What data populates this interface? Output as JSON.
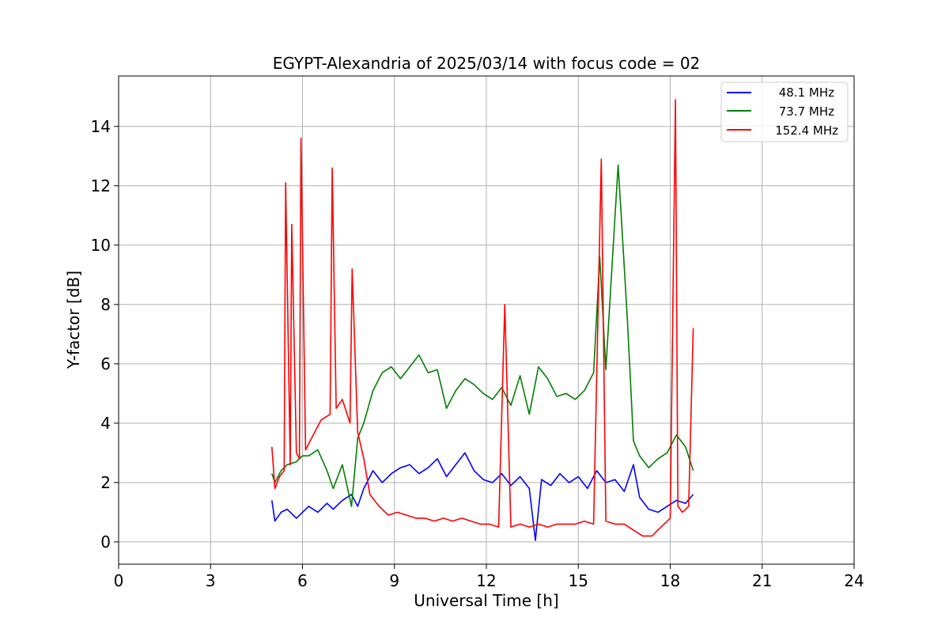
{
  "chart_data": {
    "type": "line",
    "title": "EGYPT-Alexandria of 2025/03/14 with focus code = 02",
    "xlabel": "Universal Time [h]",
    "ylabel": "Y-factor [dB]",
    "xlim": [
      0,
      24
    ],
    "ylim": [
      -0.75,
      15.7
    ],
    "xticks": [
      0,
      3,
      6,
      9,
      12,
      15,
      18,
      21,
      24
    ],
    "yticks": [
      0,
      2,
      4,
      6,
      8,
      10,
      12,
      14
    ],
    "grid": true,
    "legend_position": "top-right",
    "series": [
      {
        "name": "48.1 MHz",
        "color": "#0000ff",
        "x": [
          5.0,
          5.1,
          5.3,
          5.5,
          5.8,
          6.0,
          6.2,
          6.5,
          6.8,
          7.0,
          7.3,
          7.6,
          7.8,
          8.0,
          8.3,
          8.6,
          8.9,
          9.2,
          9.5,
          9.8,
          10.1,
          10.4,
          10.7,
          11.0,
          11.3,
          11.6,
          11.9,
          12.2,
          12.5,
          12.8,
          13.1,
          13.4,
          13.6,
          13.8,
          14.1,
          14.4,
          14.7,
          15.0,
          15.3,
          15.6,
          15.9,
          16.2,
          16.5,
          16.8,
          17.0,
          17.3,
          17.6,
          17.9,
          18.2,
          18.5,
          18.75
        ],
        "y": [
          1.4,
          0.7,
          1.0,
          1.1,
          0.8,
          1.0,
          1.2,
          1.0,
          1.3,
          1.1,
          1.4,
          1.6,
          1.2,
          1.8,
          2.4,
          2.0,
          2.3,
          2.5,
          2.6,
          2.3,
          2.5,
          2.8,
          2.2,
          2.6,
          3.0,
          2.4,
          2.1,
          2.0,
          2.3,
          1.9,
          2.2,
          1.8,
          0.05,
          2.1,
          1.9,
          2.3,
          2.0,
          2.2,
          1.8,
          2.4,
          2.0,
          2.1,
          1.7,
          2.6,
          1.5,
          1.1,
          1.0,
          1.2,
          1.4,
          1.3,
          1.6
        ]
      },
      {
        "name": "73.7 MHz",
        "color": "#008000",
        "x": [
          5.0,
          5.1,
          5.3,
          5.5,
          5.8,
          6.0,
          6.2,
          6.5,
          6.8,
          7.0,
          7.3,
          7.6,
          7.8,
          8.0,
          8.3,
          8.6,
          8.9,
          9.2,
          9.5,
          9.8,
          10.1,
          10.4,
          10.7,
          11.0,
          11.3,
          11.6,
          11.9,
          12.2,
          12.5,
          12.8,
          13.1,
          13.4,
          13.7,
          14.0,
          14.3,
          14.6,
          14.9,
          15.2,
          15.5,
          15.7,
          15.9,
          16.1,
          16.3,
          16.4,
          16.6,
          16.8,
          17.0,
          17.3,
          17.6,
          17.9,
          18.2,
          18.5,
          18.75
        ],
        "y": [
          2.3,
          2.0,
          2.4,
          2.6,
          2.7,
          2.9,
          2.9,
          3.1,
          2.4,
          1.8,
          2.6,
          1.2,
          3.5,
          4.0,
          5.1,
          5.7,
          5.9,
          5.5,
          5.9,
          6.3,
          5.7,
          5.8,
          4.5,
          5.1,
          5.5,
          5.3,
          5.0,
          4.8,
          5.2,
          4.6,
          5.6,
          4.3,
          5.9,
          5.5,
          4.9,
          5.0,
          4.8,
          5.1,
          5.7,
          9.6,
          5.8,
          9.3,
          12.7,
          11.0,
          7.5,
          3.4,
          2.9,
          2.5,
          2.8,
          3.0,
          3.6,
          3.2,
          2.4
        ]
      },
      {
        "name": "152.4 MHz",
        "color": "#ff0000",
        "x": [
          5.0,
          5.1,
          5.25,
          5.4,
          5.45,
          5.6,
          5.65,
          5.8,
          5.9,
          5.95,
          6.1,
          6.3,
          6.6,
          6.9,
          6.97,
          7.1,
          7.3,
          7.55,
          7.62,
          7.8,
          8.0,
          8.2,
          8.5,
          8.8,
          9.1,
          9.4,
          9.7,
          10.0,
          10.3,
          10.6,
          10.9,
          11.2,
          11.5,
          11.8,
          12.1,
          12.4,
          12.6,
          12.8,
          13.1,
          13.4,
          13.7,
          14.0,
          14.3,
          14.6,
          14.9,
          15.2,
          15.5,
          15.75,
          15.9,
          16.2,
          16.5,
          16.8,
          17.1,
          17.4,
          17.7,
          18.0,
          18.17,
          18.25,
          18.4,
          18.6,
          18.75
        ],
        "y": [
          3.2,
          1.8,
          2.2,
          2.4,
          12.1,
          2.6,
          10.7,
          3.0,
          2.8,
          13.6,
          3.1,
          3.5,
          4.1,
          4.3,
          12.6,
          4.5,
          4.8,
          4.0,
          9.2,
          3.7,
          2.8,
          1.6,
          1.2,
          0.9,
          1.0,
          0.9,
          0.8,
          0.8,
          0.7,
          0.8,
          0.7,
          0.8,
          0.7,
          0.6,
          0.6,
          0.5,
          8.0,
          0.5,
          0.6,
          0.5,
          0.6,
          0.5,
          0.6,
          0.6,
          0.6,
          0.7,
          0.6,
          12.9,
          0.7,
          0.6,
          0.6,
          0.4,
          0.2,
          0.2,
          0.5,
          0.8,
          14.9,
          1.2,
          1.0,
          1.2,
          7.2
        ]
      }
    ]
  }
}
